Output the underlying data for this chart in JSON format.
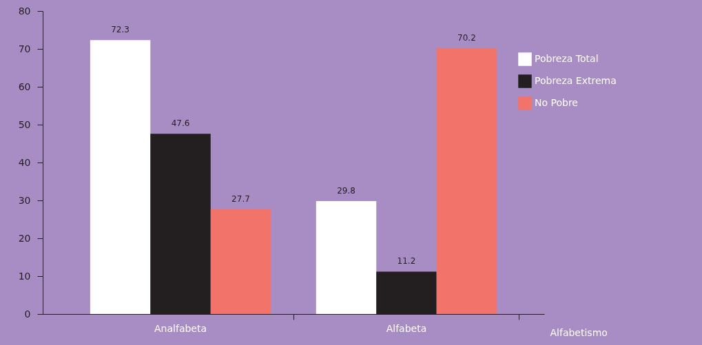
{
  "chart_data": {
    "type": "bar",
    "xlabel": "Alfabetismo",
    "categories": [
      "Analfabeta",
      "Alfabeta"
    ],
    "series": [
      {
        "name": "Pobreza Total",
        "color": "#ffffff",
        "values": [
          72.3,
          29.8
        ]
      },
      {
        "name": "Pobreza Extrema",
        "color": "#231f20",
        "values": [
          47.6,
          11.2
        ]
      },
      {
        "name": "No Pobre",
        "color": "#f1736a",
        "values": [
          27.7,
          70.2
        ]
      }
    ],
    "ylim": [
      0,
      80
    ],
    "yticks": [
      0,
      10,
      20,
      30,
      40,
      50,
      60,
      70,
      80
    ],
    "data_labels": true,
    "legend": "right",
    "grid": false
  }
}
